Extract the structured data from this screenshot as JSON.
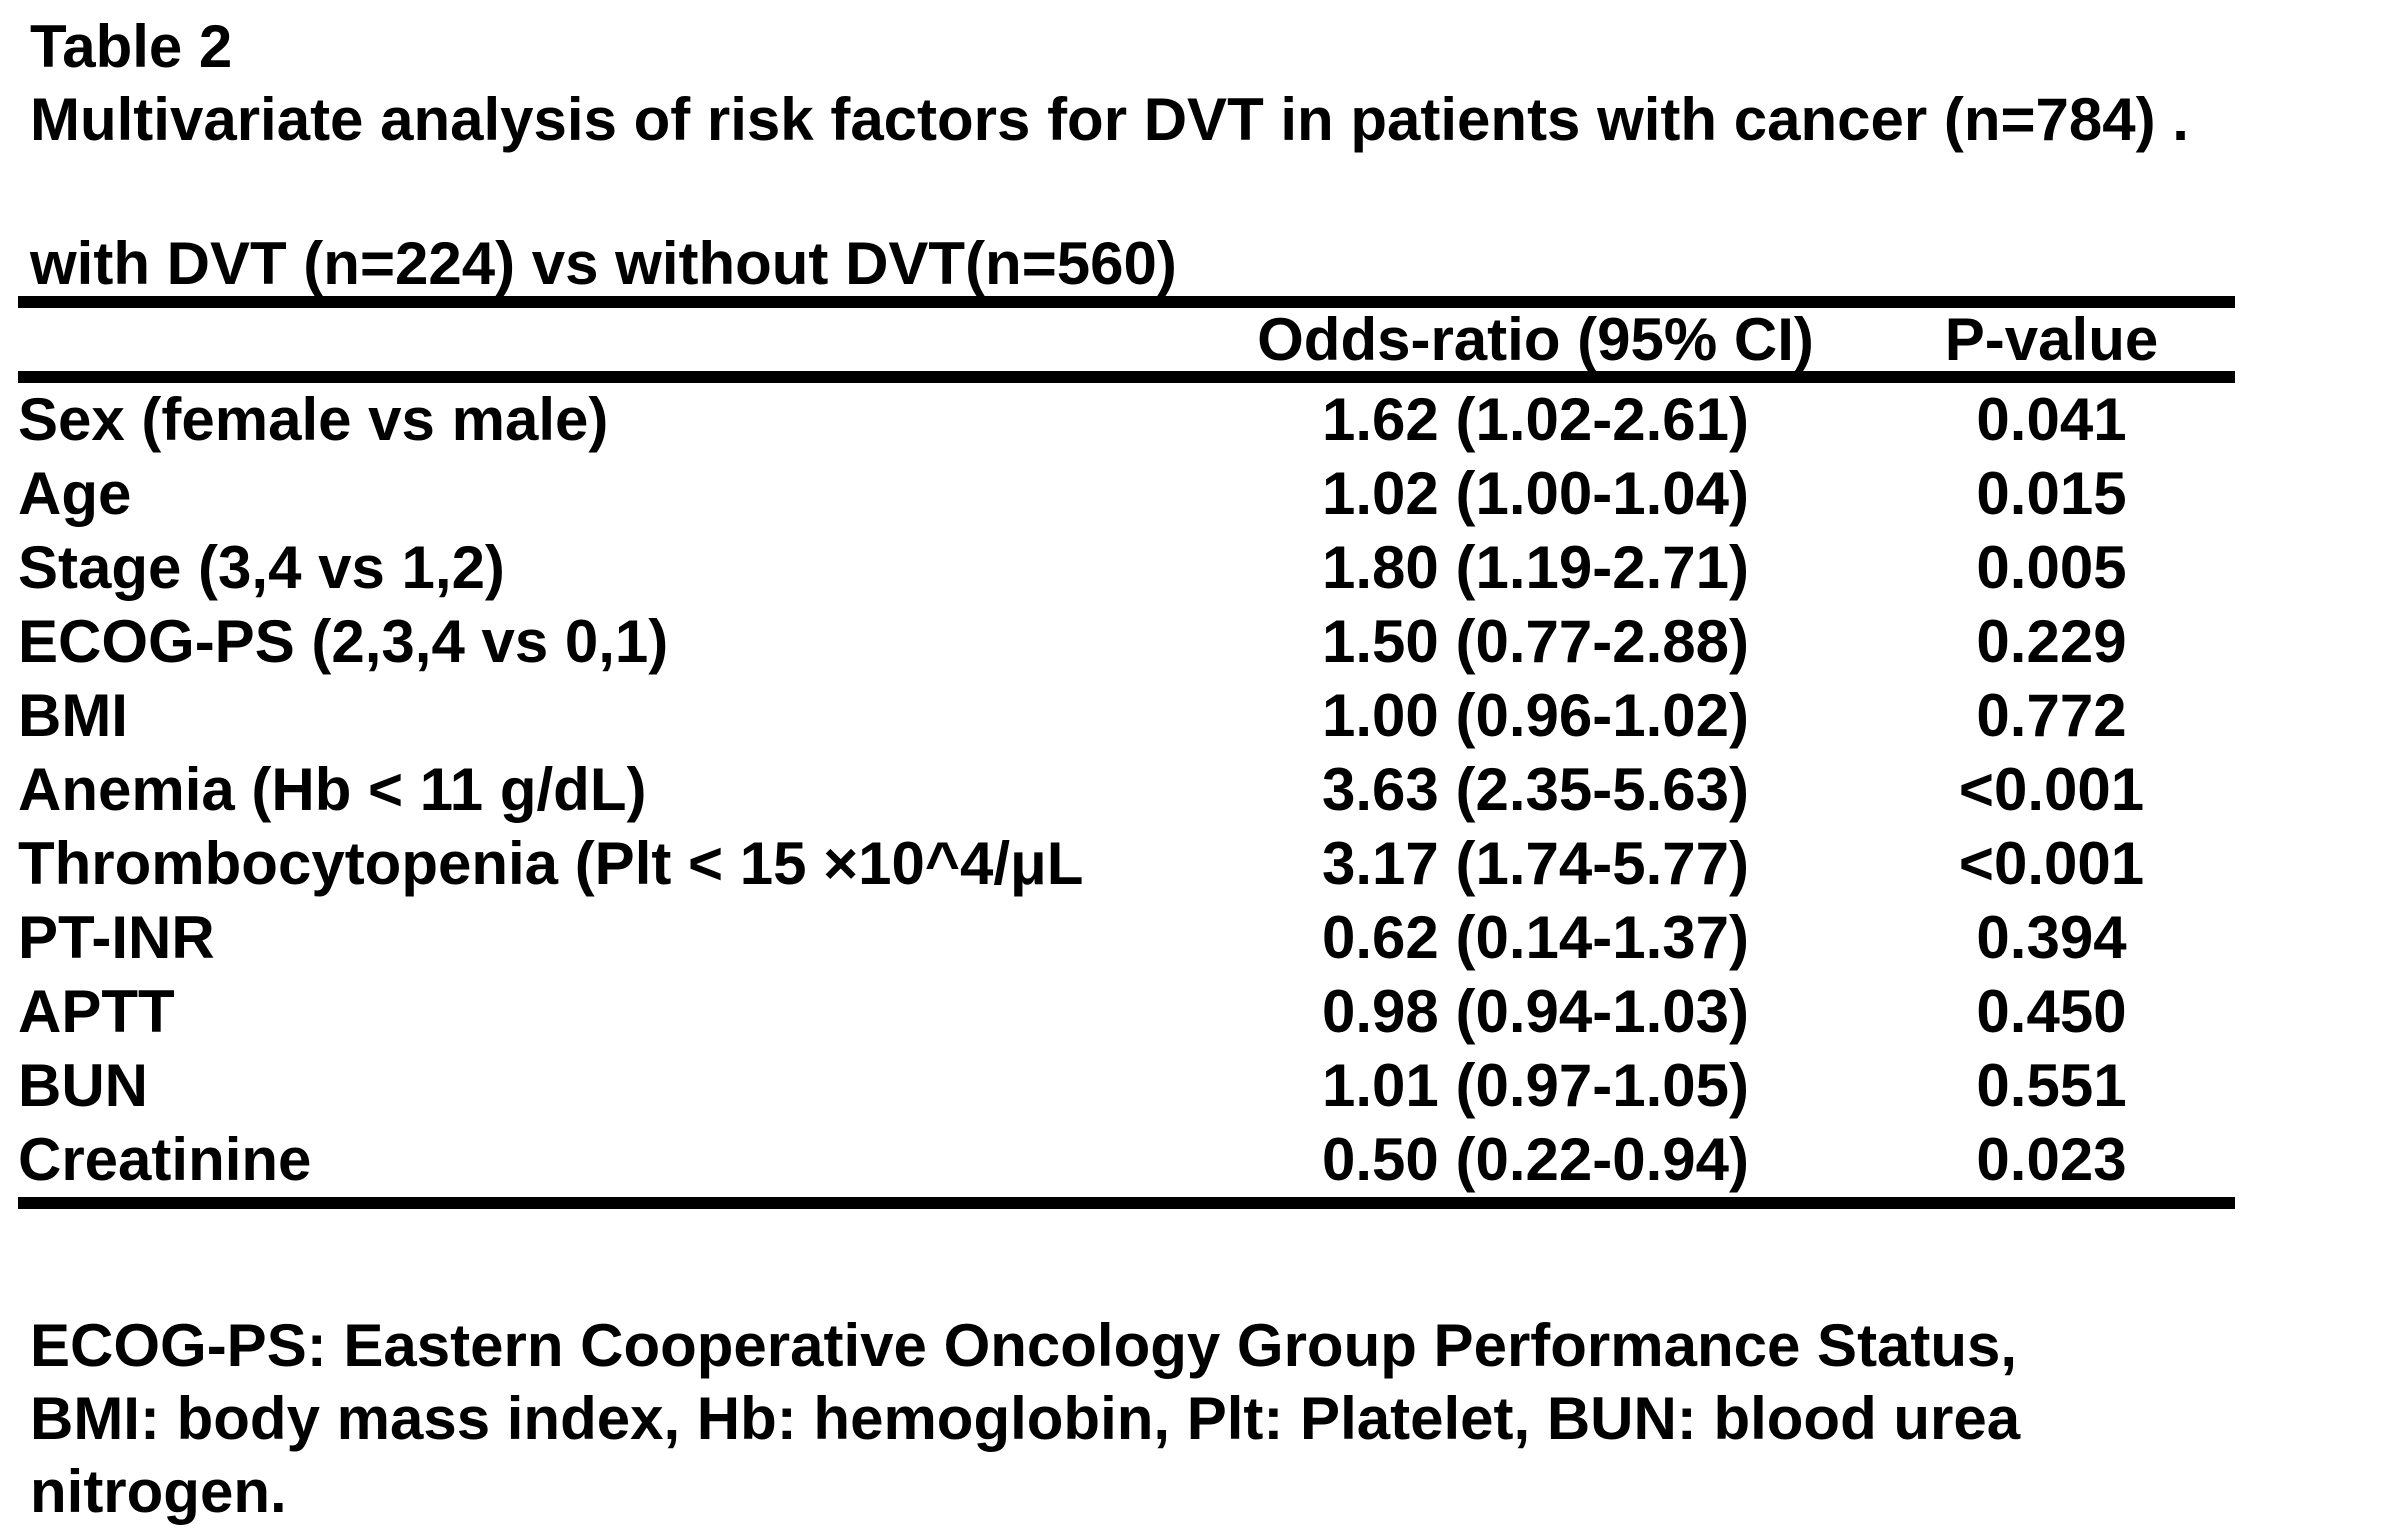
{
  "title": {
    "label": "Table 2",
    "caption": "Multivariate analysis of risk factors for DVT in patients with cancer (n=784) ."
  },
  "subtitle": "with DVT (n=224) vs without DVT(n=560)",
  "table": {
    "columns": [
      "Odds-ratio (95% CI)",
      "P-value"
    ],
    "rows": [
      {
        "factor": "Sex (female vs male)",
        "odds_ratio": "1.62 (1.02-2.61)",
        "p_value": "0.041"
      },
      {
        "factor": "Age",
        "odds_ratio": "1.02 (1.00-1.04)",
        "p_value": "0.015"
      },
      {
        "factor": "Stage (3,4 vs 1,2)",
        "odds_ratio": "1.80 (1.19-2.71)",
        "p_value": "0.005"
      },
      {
        "factor": "ECOG-PS (2,3,4 vs 0,1)",
        "odds_ratio": "1.50 (0.77-2.88)",
        "p_value": "0.229"
      },
      {
        "factor": "BMI",
        "odds_ratio": "1.00 (0.96-1.02)",
        "p_value": "0.772"
      },
      {
        "factor": "Anemia (Hb < 11 g/dL)",
        "odds_ratio": "3.63 (2.35-5.63)",
        "p_value": "<0.001"
      },
      {
        "factor": "Thrombocytopenia (Plt < 15 ×10^4/μL",
        "odds_ratio": "3.17 (1.74-5.77)",
        "p_value": "<0.001"
      },
      {
        "factor": "PT-INR",
        "odds_ratio": "0.62 (0.14-1.37)",
        "p_value": "0.394"
      },
      {
        "factor": "APTT",
        "odds_ratio": "0.98 (0.94-1.03)",
        "p_value": "0.450"
      },
      {
        "factor": "BUN",
        "odds_ratio": "1.01 (0.97-1.05)",
        "p_value": "0.551"
      },
      {
        "factor": "Creatinine",
        "odds_ratio": "0.50 (0.22-0.94)",
        "p_value": "0.023"
      }
    ]
  },
  "footnote": {
    "lines": [
      "ECOG-PS: Eastern Cooperative Oncology Group Performance Status,",
      "BMI: body mass index, Hb: hemoglobin, Plt: Platelet, BUN: blood urea",
      "nitrogen."
    ]
  }
}
